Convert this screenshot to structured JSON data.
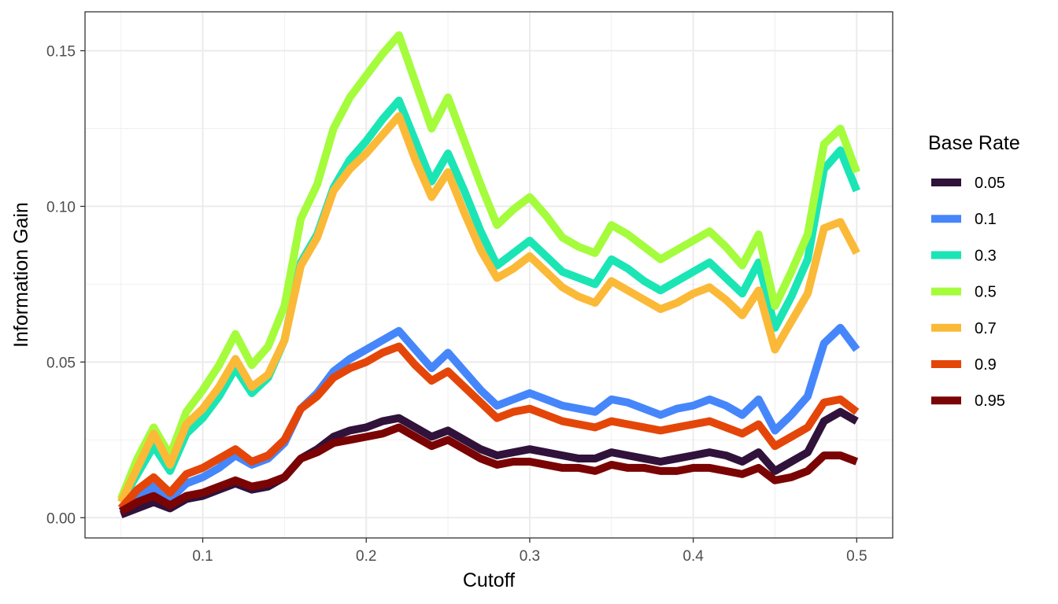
{
  "chart_data": {
    "type": "line",
    "xlabel": "Cutoff",
    "ylabel": "Information Gain",
    "xlim": [
      0.028,
      0.522
    ],
    "ylim": [
      -0.0065,
      0.1625
    ],
    "x_ticks": [
      0.1,
      0.2,
      0.3,
      0.4,
      0.5
    ],
    "x_tick_labels": [
      "0.1",
      "0.2",
      "0.3",
      "0.4",
      "0.5"
    ],
    "y_ticks": [
      0.0,
      0.05,
      0.1,
      0.15
    ],
    "y_tick_labels": [
      "0.00",
      "0.05",
      "0.10",
      "0.15"
    ],
    "grid": true,
    "legend": {
      "title": "Base Rate",
      "position": "right"
    },
    "x": [
      0.05,
      0.06,
      0.07,
      0.08,
      0.09,
      0.1,
      0.11,
      0.12,
      0.13,
      0.14,
      0.15,
      0.16,
      0.17,
      0.18,
      0.19,
      0.2,
      0.21,
      0.22,
      0.23,
      0.24,
      0.25,
      0.26,
      0.27,
      0.28,
      0.29,
      0.3,
      0.31,
      0.32,
      0.33,
      0.34,
      0.35,
      0.36,
      0.37,
      0.38,
      0.39,
      0.4,
      0.41,
      0.42,
      0.43,
      0.44,
      0.45,
      0.46,
      0.47,
      0.48,
      0.49,
      0.5
    ],
    "series": [
      {
        "name": "0.05",
        "color": "#30123b",
        "values": [
          0.001,
          0.003,
          0.005,
          0.003,
          0.006,
          0.007,
          0.009,
          0.011,
          0.009,
          0.01,
          0.013,
          0.019,
          0.022,
          0.026,
          0.028,
          0.029,
          0.031,
          0.032,
          0.029,
          0.026,
          0.028,
          0.025,
          0.022,
          0.02,
          0.021,
          0.022,
          0.021,
          0.02,
          0.019,
          0.019,
          0.021,
          0.02,
          0.019,
          0.018,
          0.019,
          0.02,
          0.021,
          0.02,
          0.018,
          0.021,
          0.015,
          0.018,
          0.021,
          0.031,
          0.034,
          0.031
        ]
      },
      {
        "name": "0.1",
        "color": "#4686fb",
        "values": [
          0.002,
          0.006,
          0.01,
          0.006,
          0.011,
          0.013,
          0.016,
          0.02,
          0.017,
          0.019,
          0.024,
          0.035,
          0.04,
          0.047,
          0.051,
          0.054,
          0.057,
          0.06,
          0.054,
          0.048,
          0.053,
          0.047,
          0.041,
          0.036,
          0.038,
          0.04,
          0.038,
          0.036,
          0.035,
          0.034,
          0.038,
          0.037,
          0.035,
          0.033,
          0.035,
          0.036,
          0.038,
          0.036,
          0.033,
          0.038,
          0.028,
          0.033,
          0.039,
          0.056,
          0.061,
          0.054
        ]
      },
      {
        "name": "0.3",
        "color": "#1be5b5",
        "values": [
          0.005,
          0.014,
          0.023,
          0.015,
          0.027,
          0.032,
          0.039,
          0.048,
          0.04,
          0.045,
          0.057,
          0.082,
          0.091,
          0.106,
          0.115,
          0.121,
          0.128,
          0.134,
          0.121,
          0.108,
          0.117,
          0.105,
          0.092,
          0.081,
          0.085,
          0.089,
          0.084,
          0.079,
          0.077,
          0.075,
          0.083,
          0.08,
          0.076,
          0.073,
          0.076,
          0.079,
          0.082,
          0.077,
          0.072,
          0.082,
          0.061,
          0.071,
          0.083,
          0.112,
          0.118,
          0.105
        ]
      },
      {
        "name": "0.5",
        "color": "#a4fc3c",
        "values": [
          0.006,
          0.019,
          0.029,
          0.02,
          0.034,
          0.041,
          0.049,
          0.059,
          0.049,
          0.055,
          0.068,
          0.096,
          0.107,
          0.125,
          0.135,
          0.142,
          0.149,
          0.155,
          0.14,
          0.125,
          0.135,
          0.121,
          0.107,
          0.094,
          0.099,
          0.103,
          0.097,
          0.09,
          0.087,
          0.085,
          0.094,
          0.091,
          0.087,
          0.083,
          0.086,
          0.089,
          0.092,
          0.087,
          0.081,
          0.091,
          0.068,
          0.079,
          0.091,
          0.12,
          0.125,
          0.111
        ]
      },
      {
        "name": "0.7",
        "color": "#fbb938",
        "values": [
          0.005,
          0.016,
          0.027,
          0.017,
          0.03,
          0.035,
          0.042,
          0.051,
          0.042,
          0.046,
          0.057,
          0.081,
          0.09,
          0.105,
          0.112,
          0.117,
          0.123,
          0.129,
          0.115,
          0.103,
          0.111,
          0.098,
          0.086,
          0.077,
          0.08,
          0.084,
          0.079,
          0.074,
          0.071,
          0.069,
          0.076,
          0.073,
          0.07,
          0.067,
          0.069,
          0.072,
          0.074,
          0.07,
          0.065,
          0.073,
          0.054,
          0.063,
          0.072,
          0.093,
          0.095,
          0.085
        ]
      },
      {
        "name": "0.9",
        "color": "#e4460a",
        "values": [
          0.003,
          0.009,
          0.013,
          0.008,
          0.014,
          0.016,
          0.019,
          0.022,
          0.018,
          0.02,
          0.025,
          0.035,
          0.039,
          0.045,
          0.048,
          0.05,
          0.053,
          0.055,
          0.049,
          0.044,
          0.047,
          0.042,
          0.037,
          0.032,
          0.034,
          0.035,
          0.033,
          0.031,
          0.03,
          0.029,
          0.031,
          0.03,
          0.029,
          0.028,
          0.029,
          0.03,
          0.031,
          0.029,
          0.027,
          0.03,
          0.023,
          0.026,
          0.029,
          0.037,
          0.038,
          0.034
        ]
      },
      {
        "name": "0.95",
        "color": "#7a0403",
        "values": [
          0.002,
          0.005,
          0.007,
          0.004,
          0.007,
          0.008,
          0.01,
          0.012,
          0.01,
          0.011,
          0.013,
          0.019,
          0.021,
          0.024,
          0.025,
          0.026,
          0.027,
          0.029,
          0.026,
          0.023,
          0.025,
          0.022,
          0.019,
          0.017,
          0.018,
          0.018,
          0.017,
          0.016,
          0.016,
          0.015,
          0.017,
          0.016,
          0.016,
          0.015,
          0.015,
          0.016,
          0.016,
          0.015,
          0.014,
          0.016,
          0.012,
          0.013,
          0.015,
          0.02,
          0.02,
          0.018
        ]
      }
    ]
  }
}
